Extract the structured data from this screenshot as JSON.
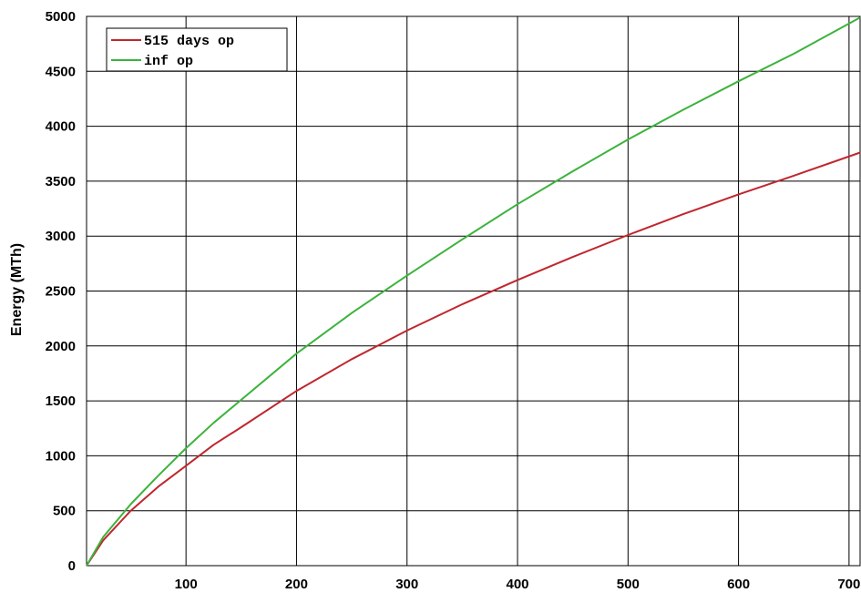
{
  "chart_data": {
    "type": "line",
    "title": "",
    "xlabel": "",
    "ylabel": "Energy (MTh)",
    "xlim": [
      10,
      710
    ],
    "ylim": [
      0,
      5000
    ],
    "x_ticks": [
      100,
      200,
      300,
      400,
      500,
      600,
      700
    ],
    "x_tick_labels": [
      "100",
      "200",
      "300",
      "400",
      "500",
      "600",
      "700"
    ],
    "y_ticks": [
      0,
      500,
      1000,
      1500,
      2000,
      2500,
      3000,
      3500,
      4000,
      4500,
      5000
    ],
    "y_tick_labels": [
      "0",
      "500",
      "1000",
      "1500",
      "2000",
      "2500",
      "3000",
      "3500",
      "4000",
      "4500",
      "5000"
    ],
    "grid": true,
    "legend_position": "top-left",
    "series": [
      {
        "name": "515 days op",
        "color": "#c0262d",
        "x": [
          10,
          25,
          50,
          75,
          100,
          125,
          150,
          200,
          250,
          300,
          350,
          400,
          450,
          500,
          550,
          600,
          650,
          710
        ],
        "y": [
          0,
          230,
          500,
          720,
          910,
          1100,
          1260,
          1590,
          1880,
          2140,
          2380,
          2600,
          2810,
          3010,
          3200,
          3380,
          3550,
          3760
        ]
      },
      {
        "name": "inf op",
        "color": "#3bb33b",
        "x": [
          10,
          25,
          50,
          75,
          100,
          125,
          150,
          200,
          250,
          300,
          350,
          400,
          450,
          500,
          550,
          600,
          650,
          710
        ],
        "y": [
          0,
          260,
          560,
          820,
          1070,
          1300,
          1510,
          1930,
          2300,
          2640,
          2970,
          3290,
          3590,
          3880,
          4150,
          4410,
          4660,
          4990
        ]
      }
    ]
  }
}
